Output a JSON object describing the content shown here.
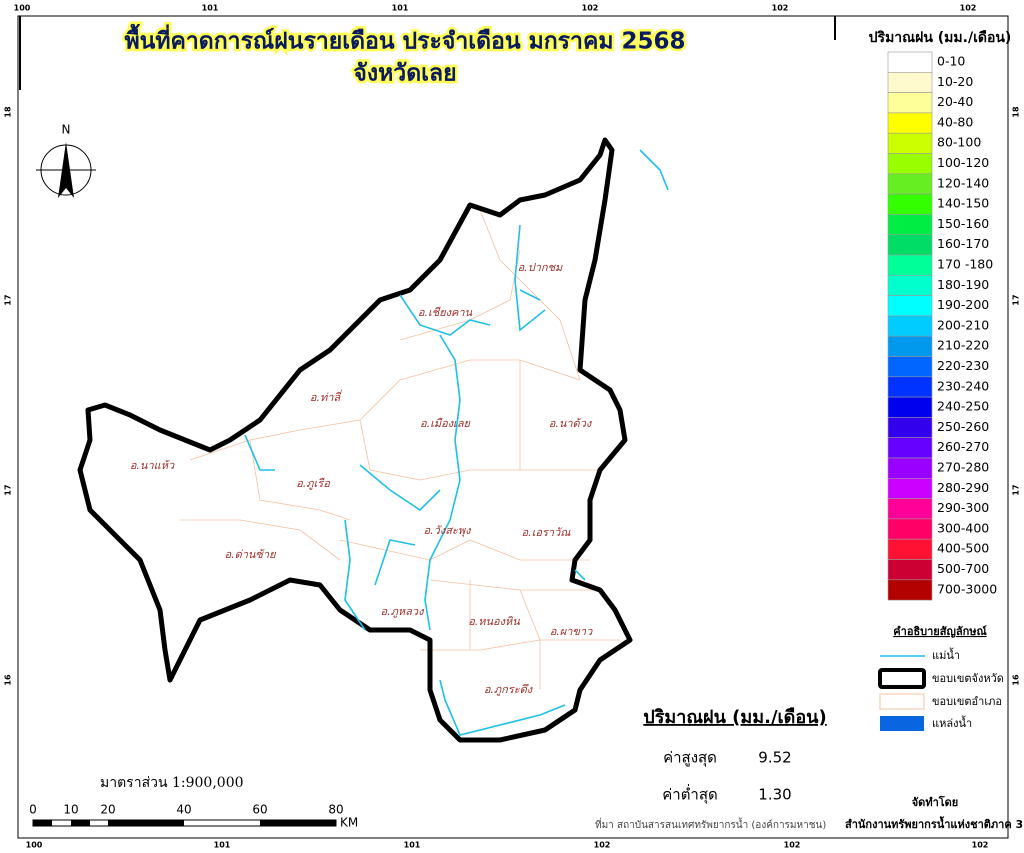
{
  "header": {
    "title": "พื้นที่คาดการณ์ฝนรายเดือน ประจำเดือน มกราคม 2568",
    "subtitle": "จังหวัดเลย"
  },
  "north": "N",
  "grid_labels": {
    "top": [
      "100",
      "101",
      "101",
      "102",
      "102",
      "102"
    ],
    "bottom": [
      "100",
      "101",
      "101",
      "102",
      "102",
      "102"
    ],
    "left": [
      "18",
      "17",
      "17",
      "16"
    ],
    "right": [
      "18",
      "17",
      "17",
      "16"
    ]
  },
  "legend": {
    "title": "ปริมาณฝน (มม./เดือน)",
    "classes": [
      {
        "label": "0-10",
        "color": "#ffffff"
      },
      {
        "label": "10-20",
        "color": "#fffacd"
      },
      {
        "label": "20-40",
        "color": "#ffff99"
      },
      {
        "label": "40-80",
        "color": "#ffff00"
      },
      {
        "label": "80-100",
        "color": "#ccff00"
      },
      {
        "label": "100-120",
        "color": "#99ff00"
      },
      {
        "label": "120-140",
        "color": "#66ee22"
      },
      {
        "label": "140-150",
        "color": "#33ff00"
      },
      {
        "label": "150-160",
        "color": "#00ee44"
      },
      {
        "label": "160-170",
        "color": "#00dd66"
      },
      {
        "label": "170 -180",
        "color": "#00ff99"
      },
      {
        "label": "180-190",
        "color": "#00ffcc"
      },
      {
        "label": "190-200",
        "color": "#00ffff"
      },
      {
        "label": "200-210",
        "color": "#00ccff"
      },
      {
        "label": "210-220",
        "color": "#0099ee"
      },
      {
        "label": "220-230",
        "color": "#0066ff"
      },
      {
        "label": "230-240",
        "color": "#0033ff"
      },
      {
        "label": "240-250",
        "color": "#0000ee"
      },
      {
        "label": "250-260",
        "color": "#3300ee"
      },
      {
        "label": "260-270",
        "color": "#6600ff"
      },
      {
        "label": "270-280",
        "color": "#9900ff"
      },
      {
        "label": "280-290",
        "color": "#cc00ff"
      },
      {
        "label": "290-300",
        "color": "#ff0099"
      },
      {
        "label": "300-400",
        "color": "#ff0066"
      },
      {
        "label": "400-500",
        "color": "#ff1133"
      },
      {
        "label": "500-700",
        "color": "#cc0033"
      },
      {
        "label": "700-3000",
        "color": "#b30000"
      }
    ]
  },
  "districts": [
    "อ.ปากชม",
    "อ.เชียงคาน",
    "อ.ท่าลี่",
    "อ.เมืองเลย",
    "อ.นาด้วง",
    "อ.นาแห้ว",
    "อ.ภูเรือ",
    "อ.วังสะพุง",
    "อ.เอราวัณ",
    "อ.ด่านซ้าย",
    "อ.ภูหลวง",
    "อ.หนองหิน",
    "อ.ผาขาว",
    "อ.ภูกระดึง"
  ],
  "symbols": {
    "title": "คำอธิบายสัญลักษณ์",
    "items": [
      "แม่น้ำ",
      "ขอบเขตจังหวัด",
      "ขอบเขตอำเภอ",
      "แหล่งน้ำ"
    ]
  },
  "stats": {
    "title": "ปริมาณฝน (มม./เดือน)",
    "max_label": "ค่าสูงสุด",
    "max_value": "9.52",
    "min_label": "ค่าต่ำสุด",
    "min_value": "1.30"
  },
  "scale": {
    "text": "มาตราส่วน 1:900,000",
    "ticks": [
      "0",
      "10",
      "20",
      "40",
      "60",
      "80"
    ],
    "unit": "KM"
  },
  "footer": {
    "source": "ที่มา  สถาบันสารสนเทศทรัพยากรน้ำ (องค์การมหาชน)",
    "made_by_label": "จัดทำโดย",
    "made_by": "สำนักงานทรัพยากรน้ำแห่งชาติภาค 3"
  }
}
